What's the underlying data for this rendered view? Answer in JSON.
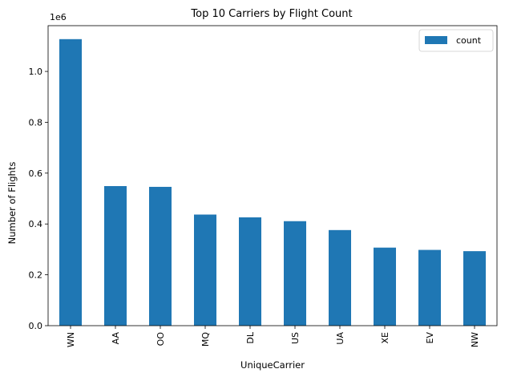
{
  "chart_data": {
    "type": "bar",
    "title": "Top 10 Carriers by Flight Count",
    "xlabel": "UniqueCarrier",
    "ylabel": "Number of Flights",
    "y_offset_label": "1e6",
    "categories": [
      "WN",
      "AA",
      "OO",
      "MQ",
      "DL",
      "US",
      "UA",
      "XE",
      "EV",
      "NW"
    ],
    "series": [
      {
        "name": "count",
        "values": [
          1127000,
          549000,
          546000,
          437000,
          426000,
          411000,
          376000,
          307000,
          298000,
          293000
        ]
      }
    ],
    "ylim": [
      0,
      1180000
    ],
    "yticks": [
      0,
      200000,
      400000,
      600000,
      800000,
      1000000
    ],
    "ytick_labels": [
      "0.0",
      "0.2",
      "0.4",
      "0.6",
      "0.8",
      "1.0"
    ],
    "grid": false,
    "legend_position": "top-right",
    "bar_color": "#1f77b4"
  }
}
